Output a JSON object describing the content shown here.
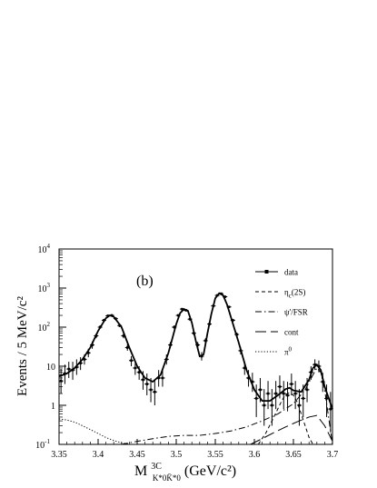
{
  "chart_data": {
    "type": "line",
    "panel_label": "(b)",
    "xlabel": {
      "main": "M",
      "sup": "3C",
      "sub": "K*0K̄*0",
      "unit": " (GeV/c²)"
    },
    "ylabel": "Events / 5 MeV/c²",
    "xlim": [
      3.35,
      3.7
    ],
    "ylim": [
      0.1,
      10000
    ],
    "yscale": "log",
    "x_ticks": [
      3.35,
      3.4,
      3.45,
      3.5,
      3.55,
      3.6,
      3.65,
      3.7
    ],
    "x_tick_labels": [
      "3.35",
      "3.4",
      "3.45",
      "3.5",
      "3.55",
      "3.6",
      "3.65",
      "3.7"
    ],
    "y_ticks": [
      {
        "value": 0.1,
        "base": "10",
        "exp": "-1"
      },
      {
        "value": 1,
        "base": "1",
        "exp": ""
      },
      {
        "value": 10,
        "base": "10",
        "exp": ""
      },
      {
        "value": 100,
        "base": "10",
        "exp": "2"
      },
      {
        "value": 1000,
        "base": "10",
        "exp": "3"
      },
      {
        "value": 10000,
        "base": "10",
        "exp": "4"
      }
    ],
    "legend": {
      "position": "top-right",
      "entries": [
        {
          "label": "data",
          "style": "marker"
        },
        {
          "label": "η_c(2S)",
          "label_main": "η",
          "label_sub": "c",
          "label_rest": "(2S)",
          "style": "dash"
        },
        {
          "label": "ψ'/FSR",
          "style": "dashdot"
        },
        {
          "label": "cont",
          "style": "longdash"
        },
        {
          "label": "π⁰",
          "label_main": "π",
          "label_sup": "0",
          "style": "dot"
        }
      ]
    },
    "series": [
      {
        "name": "data",
        "style": "errorbar",
        "points": [
          [
            3.3525,
            4.2,
            2.0,
            8.5
          ],
          [
            3.3575,
            6.5,
            3.5,
            11
          ],
          [
            3.3625,
            8.5,
            5,
            13
          ],
          [
            3.3675,
            8.0,
            4.5,
            13
          ],
          [
            3.3725,
            9.5,
            6,
            15
          ],
          [
            3.3775,
            12,
            8,
            17
          ],
          [
            3.3825,
            15,
            11,
            20
          ],
          [
            3.3875,
            22,
            17,
            28
          ],
          [
            3.3925,
            35,
            28,
            43
          ],
          [
            3.3975,
            60,
            52,
            69
          ],
          [
            3.4025,
            100,
            90,
            111
          ],
          [
            3.4075,
            150,
            138,
            163
          ],
          [
            3.4125,
            195,
            181,
            209
          ],
          [
            3.4175,
            200,
            186,
            214
          ],
          [
            3.4225,
            165,
            152,
            178
          ],
          [
            3.4275,
            110,
            100,
            120
          ],
          [
            3.4325,
            60,
            52,
            68
          ],
          [
            3.4375,
            30,
            25,
            36
          ],
          [
            3.4425,
            14,
            10,
            18
          ],
          [
            3.4475,
            9,
            6,
            12
          ],
          [
            3.4525,
            7,
            4.5,
            10
          ],
          [
            3.4575,
            4.5,
            2.5,
            7.5
          ],
          [
            3.4625,
            3.5,
            1.8,
            6.5
          ],
          [
            3.4675,
            2.5,
            1.2,
            5
          ],
          [
            3.4725,
            2.2,
            1.0,
            4.5
          ],
          [
            3.4775,
            5,
            3,
            8
          ],
          [
            3.4825,
            5,
            3,
            8
          ],
          [
            3.4875,
            15,
            11,
            20
          ],
          [
            3.4925,
            35,
            29,
            42
          ],
          [
            3.4975,
            100,
            90,
            111
          ],
          [
            3.5025,
            200,
            186,
            214
          ],
          [
            3.5075,
            290,
            273,
            307
          ],
          [
            3.5125,
            270,
            254,
            286
          ],
          [
            3.5175,
            160,
            147,
            173
          ],
          [
            3.5225,
            70,
            62,
            79
          ],
          [
            3.5275,
            35,
            29,
            42
          ],
          [
            3.5325,
            18,
            14,
            23
          ],
          [
            3.5375,
            45,
            38,
            52
          ],
          [
            3.5425,
            120,
            109,
            131
          ],
          [
            3.5475,
            350,
            331,
            369
          ],
          [
            3.5525,
            650,
            625,
            675
          ],
          [
            3.5575,
            720,
            693,
            747
          ],
          [
            3.5625,
            600,
            576,
            624
          ],
          [
            3.5675,
            330,
            312,
            348
          ],
          [
            3.5725,
            150,
            138,
            163
          ],
          [
            3.5775,
            65,
            57,
            73
          ],
          [
            3.5825,
            25,
            20,
            31
          ],
          [
            3.5875,
            9,
            6,
            12
          ],
          [
            3.5925,
            5,
            3,
            8
          ],
          [
            3.5975,
            4,
            2.2,
            6.8
          ],
          [
            3.6025,
            1.5,
            0.5,
            3.4
          ],
          [
            3.6075,
            2.5,
            1.2,
            5
          ],
          [
            3.6125,
            1.0,
            0.3,
            2.6
          ],
          [
            3.6175,
            2.0,
            0.8,
            4.2
          ],
          [
            3.6225,
            1.0,
            0.3,
            2.6
          ],
          [
            3.6275,
            2.0,
            0.8,
            4.2
          ],
          [
            3.6325,
            3.0,
            1.5,
            5.8
          ],
          [
            3.6375,
            2.0,
            0.8,
            4.2
          ],
          [
            3.6425,
            1.8,
            0.7,
            4.0
          ],
          [
            3.6475,
            3.5,
            1.8,
            6.5
          ],
          [
            3.6525,
            2.0,
            0.8,
            4.2
          ],
          [
            3.6575,
            1.0,
            0.3,
            2.6
          ],
          [
            3.6625,
            1.5,
            0.5,
            3.4
          ],
          [
            3.6675,
            2.5,
            1.2,
            5
          ],
          [
            3.6725,
            7,
            4.5,
            10
          ],
          [
            3.6775,
            11,
            8,
            15
          ],
          [
            3.6825,
            10,
            7,
            14
          ],
          [
            3.6875,
            4,
            2.2,
            6.8
          ],
          [
            3.6925,
            1.5,
            0.5,
            3.4
          ],
          [
            3.6975,
            0.8,
            0.2,
            2.2
          ]
        ]
      },
      {
        "name": "fit",
        "style": "solid",
        "points": [
          [
            3.35,
            5.5
          ],
          [
            3.36,
            6.5
          ],
          [
            3.37,
            9
          ],
          [
            3.38,
            15
          ],
          [
            3.39,
            30
          ],
          [
            3.4,
            80
          ],
          [
            3.41,
            170
          ],
          [
            3.415,
            200
          ],
          [
            3.42,
            185
          ],
          [
            3.43,
            100
          ],
          [
            3.44,
            30
          ],
          [
            3.45,
            10
          ],
          [
            3.46,
            5
          ],
          [
            3.47,
            4
          ],
          [
            3.48,
            6
          ],
          [
            3.49,
            22
          ],
          [
            3.5,
            120
          ],
          [
            3.505,
            230
          ],
          [
            3.51,
            290
          ],
          [
            3.515,
            260
          ],
          [
            3.52,
            130
          ],
          [
            3.525,
            45
          ],
          [
            3.53,
            18
          ],
          [
            3.535,
            20
          ],
          [
            3.54,
            70
          ],
          [
            3.545,
            220
          ],
          [
            3.55,
            550
          ],
          [
            3.555,
            740
          ],
          [
            3.56,
            650
          ],
          [
            3.565,
            380
          ],
          [
            3.57,
            180
          ],
          [
            3.58,
            40
          ],
          [
            3.59,
            8
          ],
          [
            3.6,
            2.5
          ],
          [
            3.61,
            1.3
          ],
          [
            3.62,
            1.3
          ],
          [
            3.63,
            1.8
          ],
          [
            3.64,
            2.6
          ],
          [
            3.645,
            2.8
          ],
          [
            3.65,
            2.4
          ],
          [
            3.66,
            2.2
          ],
          [
            3.67,
            4.5
          ],
          [
            3.675,
            9
          ],
          [
            3.68,
            11
          ],
          [
            3.685,
            8
          ],
          [
            3.69,
            3
          ],
          [
            3.7,
            0.8
          ]
        ]
      },
      {
        "name": "η_c(2S)",
        "style": "dash",
        "points": [
          [
            3.605,
            0.1
          ],
          [
            3.615,
            0.2
          ],
          [
            3.625,
            0.5
          ],
          [
            3.635,
            1.3
          ],
          [
            3.64,
            1.9
          ],
          [
            3.645,
            2.1
          ],
          [
            3.65,
            1.8
          ],
          [
            3.655,
            1.2
          ],
          [
            3.66,
            0.6
          ],
          [
            3.665,
            0.3
          ],
          [
            3.67,
            0.15
          ],
          [
            3.675,
            0.1
          ]
        ]
      },
      {
        "name": "ψ'/FSR",
        "style": "dashdot",
        "points": [
          [
            3.43,
            0.1
          ],
          [
            3.45,
            0.12
          ],
          [
            3.47,
            0.14
          ],
          [
            3.49,
            0.16
          ],
          [
            3.51,
            0.17
          ],
          [
            3.53,
            0.17
          ],
          [
            3.55,
            0.19
          ],
          [
            3.57,
            0.22
          ],
          [
            3.59,
            0.28
          ],
          [
            3.61,
            0.4
          ],
          [
            3.63,
            0.6
          ],
          [
            3.65,
            1.1
          ],
          [
            3.665,
            2.5
          ],
          [
            3.675,
            6
          ],
          [
            3.68,
            9
          ],
          [
            3.685,
            7
          ],
          [
            3.69,
            2.5
          ],
          [
            3.695,
            0.5
          ],
          [
            3.7,
            0.1
          ]
        ]
      },
      {
        "name": "cont",
        "style": "longdash",
        "points": [
          [
            3.595,
            0.1
          ],
          [
            3.61,
            0.14
          ],
          [
            3.625,
            0.2
          ],
          [
            3.64,
            0.28
          ],
          [
            3.655,
            0.38
          ],
          [
            3.67,
            0.5
          ],
          [
            3.68,
            0.55
          ],
          [
            3.69,
            0.3
          ],
          [
            3.7,
            0.12
          ]
        ]
      },
      {
        "name": "π⁰",
        "style": "dot",
        "points": [
          [
            3.35,
            0.45
          ],
          [
            3.36,
            0.42
          ],
          [
            3.37,
            0.37
          ],
          [
            3.38,
            0.3
          ],
          [
            3.39,
            0.24
          ],
          [
            3.4,
            0.19
          ],
          [
            3.41,
            0.15
          ],
          [
            3.42,
            0.125
          ],
          [
            3.43,
            0.11
          ],
          [
            3.44,
            0.1
          ]
        ]
      }
    ]
  }
}
